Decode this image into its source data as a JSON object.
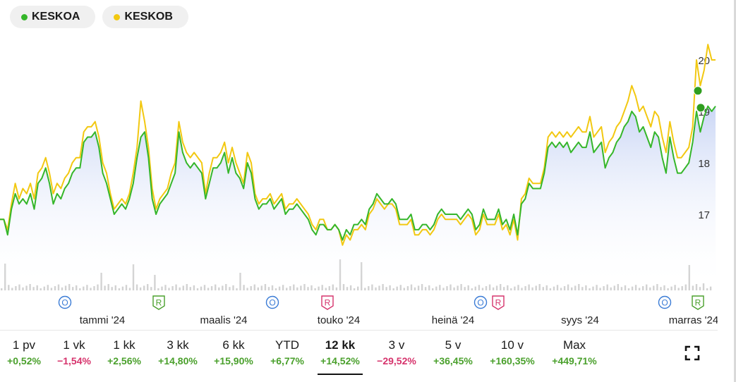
{
  "legend": [
    {
      "label": "KESKOA",
      "color": "#35b62a"
    },
    {
      "label": "KESKOB",
      "color": "#f2c811"
    }
  ],
  "chart_data": {
    "type": "line",
    "yticks": [
      17,
      18,
      19,
      20
    ],
    "ylim": [
      16.15,
      20.45
    ],
    "xlabels": [
      "tammi '24",
      "maalis '24",
      "touko '24",
      "heinä '24",
      "syys '24",
      "marras '24"
    ],
    "series": [
      {
        "name": "KESKOA",
        "color": "#35b62a",
        "values": [
          16.9,
          16.9,
          16.6,
          17.1,
          17.4,
          17.2,
          17.3,
          17.2,
          17.4,
          17.1,
          17.6,
          17.7,
          17.9,
          17.6,
          17.2,
          17.4,
          17.3,
          17.5,
          17.6,
          17.8,
          17.9,
          17.9,
          18.4,
          18.5,
          18.5,
          18.6,
          18.3,
          17.8,
          17.6,
          17.3,
          17.0,
          17.1,
          17.2,
          17.1,
          17.3,
          17.6,
          18.1,
          18.5,
          18.6,
          18.1,
          17.3,
          17.0,
          17.2,
          17.3,
          17.4,
          17.6,
          17.8,
          18.6,
          18.2,
          18.0,
          17.9,
          18.0,
          17.9,
          17.8,
          17.3,
          17.6,
          17.9,
          17.9,
          18.0,
          18.2,
          17.8,
          18.1,
          17.8,
          17.7,
          17.5,
          18.0,
          17.8,
          17.3,
          17.1,
          17.2,
          17.2,
          17.3,
          17.1,
          17.2,
          17.3,
          17.0,
          17.1,
          17.1,
          17.2,
          17.1,
          17.0,
          16.9,
          16.7,
          16.6,
          16.8,
          16.8,
          16.7,
          16.7,
          16.8,
          16.7,
          16.5,
          16.7,
          16.6,
          16.8,
          16.8,
          16.9,
          16.8,
          17.1,
          17.2,
          17.4,
          17.3,
          17.2,
          17.2,
          17.3,
          17.2,
          16.9,
          16.9,
          16.9,
          17.0,
          16.7,
          16.7,
          16.8,
          16.8,
          16.7,
          16.8,
          17.0,
          17.1,
          17.0,
          17.0,
          17.0,
          17.0,
          16.9,
          17.0,
          17.1,
          17.0,
          16.7,
          16.8,
          17.1,
          16.9,
          16.9,
          16.9,
          17.1,
          16.8,
          16.9,
          16.7,
          17.0,
          16.6,
          17.2,
          17.3,
          17.6,
          17.5,
          17.5,
          17.5,
          17.8,
          18.3,
          18.4,
          18.3,
          18.4,
          18.3,
          18.4,
          18.2,
          18.3,
          18.4,
          18.3,
          18.3,
          18.6,
          18.2,
          18.3,
          18.4,
          17.9,
          18.1,
          18.2,
          18.4,
          18.5,
          18.7,
          18.8,
          19.0,
          18.9,
          18.6,
          18.7,
          18.5,
          18.3,
          18.6,
          18.5,
          18.1,
          17.8,
          18.5,
          18.1,
          17.8,
          17.8,
          17.9,
          18.0,
          18.4,
          19.0,
          18.6,
          18.9,
          19.1,
          19.0,
          19.1
        ]
      },
      {
        "name": "KESKOB",
        "color": "#f2c811",
        "values": [
          16.9,
          16.9,
          16.7,
          17.2,
          17.6,
          17.3,
          17.5,
          17.4,
          17.6,
          17.3,
          17.8,
          17.9,
          18.1,
          17.8,
          17.4,
          17.6,
          17.5,
          17.7,
          17.8,
          18.0,
          18.1,
          18.1,
          18.6,
          18.7,
          18.7,
          18.8,
          18.5,
          18.0,
          17.8,
          17.4,
          17.1,
          17.2,
          17.3,
          17.2,
          17.4,
          17.8,
          18.3,
          19.2,
          18.8,
          18.3,
          17.5,
          17.1,
          17.3,
          17.4,
          17.5,
          17.8,
          18.0,
          18.8,
          18.4,
          18.2,
          18.1,
          18.2,
          18.1,
          18.0,
          17.4,
          17.8,
          18.1,
          18.1,
          18.2,
          18.4,
          18.0,
          18.3,
          18.0,
          17.8,
          17.6,
          18.2,
          18.0,
          17.4,
          17.2,
          17.3,
          17.3,
          17.4,
          17.2,
          17.3,
          17.4,
          17.1,
          17.2,
          17.2,
          17.3,
          17.2,
          17.1,
          17.0,
          16.8,
          16.7,
          16.9,
          16.9,
          16.7,
          16.7,
          16.8,
          16.7,
          16.4,
          16.6,
          16.5,
          16.7,
          16.7,
          16.8,
          16.7,
          17.0,
          17.1,
          17.3,
          17.2,
          17.1,
          17.2,
          17.2,
          17.1,
          16.8,
          16.8,
          16.8,
          16.9,
          16.6,
          16.6,
          16.7,
          16.7,
          16.6,
          16.7,
          16.9,
          17.0,
          16.9,
          16.9,
          16.9,
          16.9,
          16.8,
          16.9,
          17.0,
          16.9,
          16.6,
          16.7,
          17.0,
          16.8,
          16.8,
          16.8,
          17.0,
          16.7,
          16.8,
          16.6,
          16.9,
          16.5,
          17.3,
          17.4,
          17.7,
          17.6,
          17.6,
          17.6,
          17.9,
          18.5,
          18.6,
          18.5,
          18.6,
          18.5,
          18.6,
          18.5,
          18.6,
          18.7,
          18.6,
          18.6,
          18.9,
          18.5,
          18.6,
          18.7,
          18.2,
          18.4,
          18.5,
          18.7,
          18.8,
          19.0,
          19.2,
          19.5,
          19.3,
          19.0,
          19.1,
          18.9,
          18.7,
          19.0,
          18.9,
          18.5,
          18.2,
          18.8,
          18.4,
          18.1,
          18.1,
          18.2,
          18.3,
          18.7,
          20.0,
          19.5,
          19.8,
          20.3,
          20.0,
          20.0
        ]
      }
    ],
    "markers": [
      {
        "type": "O",
        "color": "#3a7bd5",
        "label": "O"
      },
      {
        "type": "R",
        "color": "#4aa02c",
        "label": "R"
      },
      {
        "type": "O",
        "color": "#3a7bd5",
        "label": "O"
      },
      {
        "type": "R",
        "color": "#d6336c",
        "label": "R"
      },
      {
        "type": "O",
        "color": "#3a7bd5",
        "label": "O"
      },
      {
        "type": "R",
        "color": "#d6336c",
        "label": "R"
      },
      {
        "type": "O",
        "color": "#3a7bd5",
        "label": "O"
      },
      {
        "type": "R",
        "color": "#4aa02c",
        "label": "R"
      }
    ]
  },
  "ranges": [
    {
      "label": "1 pv",
      "change": "+0,52%",
      "dir": "pos"
    },
    {
      "label": "1 vk",
      "change": "−1,54%",
      "dir": "neg"
    },
    {
      "label": "1 kk",
      "change": "+2,56%",
      "dir": "pos"
    },
    {
      "label": "3 kk",
      "change": "+14,80%",
      "dir": "pos"
    },
    {
      "label": "6 kk",
      "change": "+15,90%",
      "dir": "pos"
    },
    {
      "label": "YTD",
      "change": "+6,77%",
      "dir": "pos"
    },
    {
      "label": "12 kk",
      "change": "+14,52%",
      "dir": "pos",
      "active": true
    },
    {
      "label": "3 v",
      "change": "−29,52%",
      "dir": "neg"
    },
    {
      "label": "5 v",
      "change": "+36,45%",
      "dir": "pos"
    },
    {
      "label": "10 v",
      "change": "+160,35%",
      "dir": "pos"
    },
    {
      "label": "Max",
      "change": "+449,71%",
      "dir": "pos"
    }
  ]
}
